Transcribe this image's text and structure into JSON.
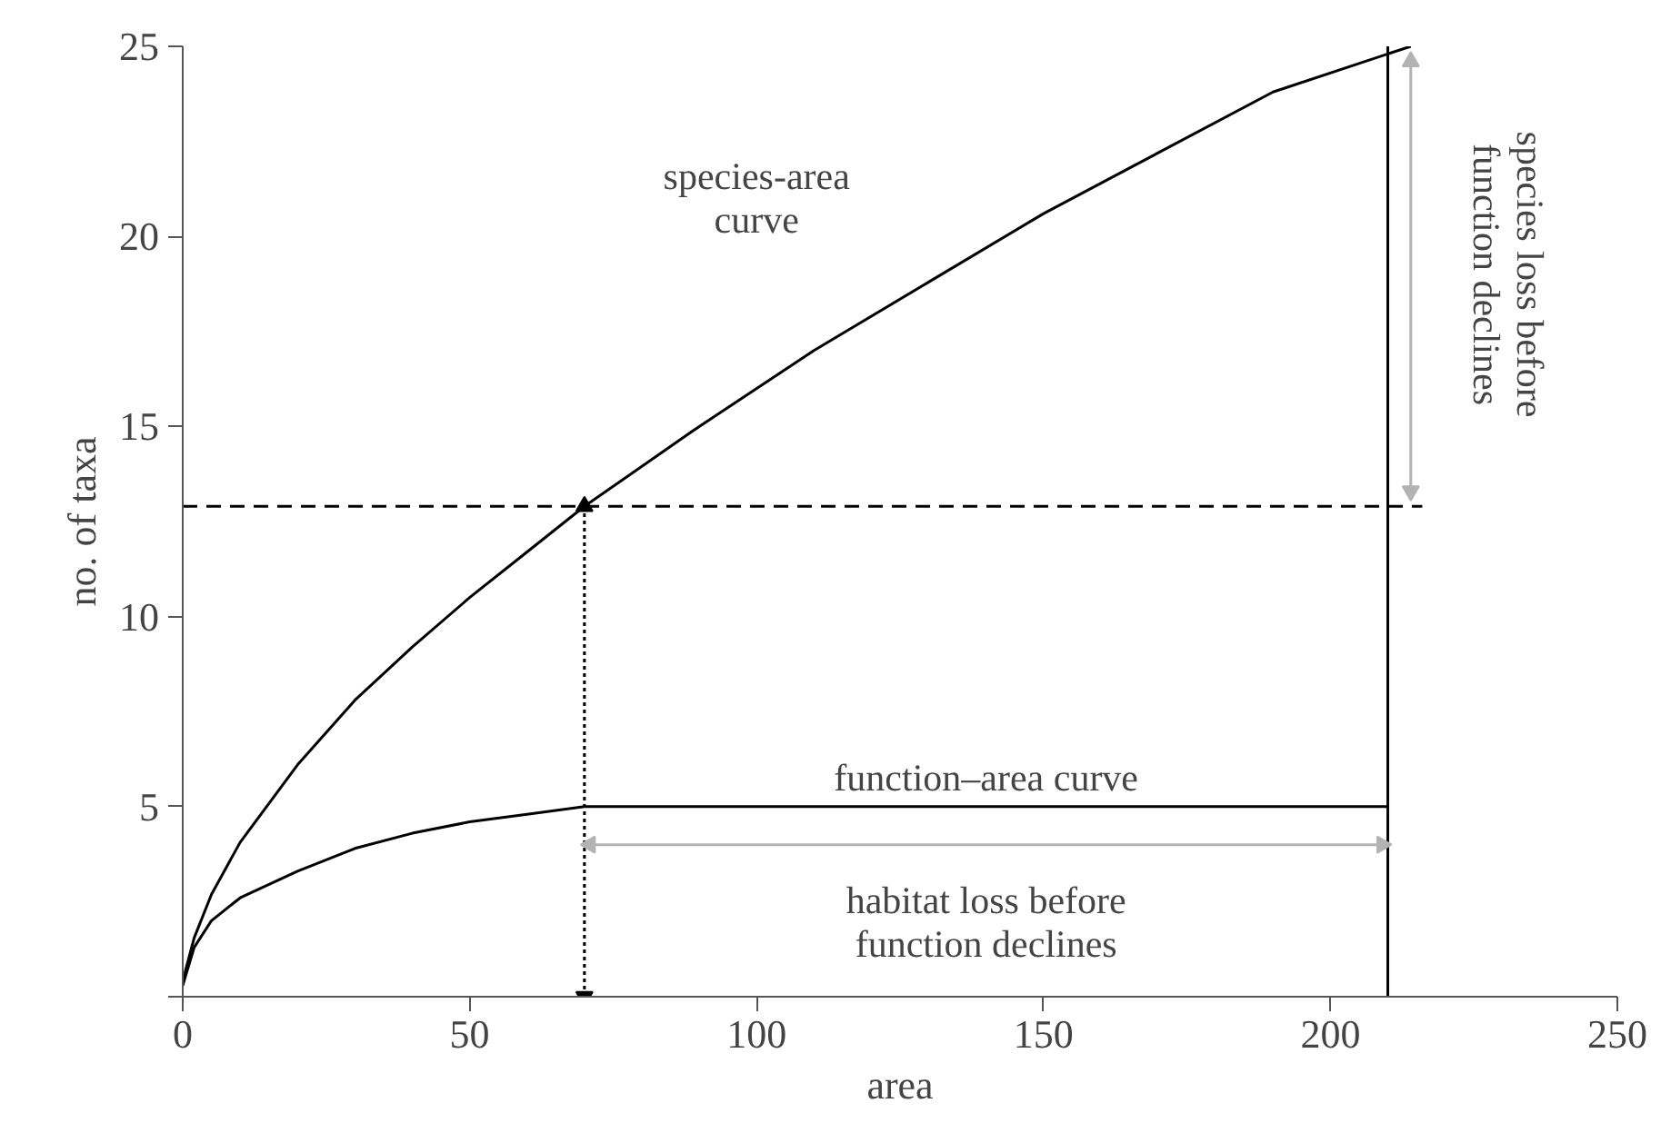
{
  "chart_data": {
    "type": "line",
    "xlabel": "area",
    "ylabel": "no. of taxa",
    "xlim": [
      0,
      250
    ],
    "ylim": [
      0,
      25
    ],
    "xticks": [
      0,
      50,
      100,
      150,
      200,
      250
    ],
    "yticks": [
      {
        "value": 0,
        "label": null
      },
      5,
      10,
      15,
      20,
      25
    ],
    "grid": false,
    "series": [
      {
        "color": "#000000",
        "line_style": "solid",
        "x": [
          0,
          0.5,
          2,
          5,
          10,
          20,
          30,
          40,
          50,
          60,
          70,
          90,
          110,
          130,
          150,
          170,
          190,
          214
        ],
        "values": [
          0.3,
          0.7,
          1.55,
          2.69,
          4.06,
          6.1,
          7.8,
          9.2,
          10.5,
          11.7,
          12.9,
          15.0,
          17.0,
          18.8,
          20.6,
          22.2,
          23.8,
          25
        ]
      },
      {
        "color": "#000000",
        "line_style": "solid",
        "x": [
          0,
          2,
          5,
          10,
          20,
          30,
          40,
          50,
          60,
          70,
          210
        ],
        "values": [
          0.3,
          1.3,
          2.0,
          2.6,
          3.3,
          3.9,
          4.3,
          4.6,
          4.8,
          5.0,
          5.0
        ]
      },
      {
        "color": "#000000",
        "line_style": "dashed",
        "x": [
          0,
          216
        ],
        "values": [
          12.9,
          12.9
        ]
      },
      {
        "color": "#000000",
        "line_style": "dotted",
        "marker": "triangle",
        "x": [
          70,
          70
        ],
        "values": [
          0,
          12.9
        ]
      },
      {
        "color": "#000000",
        "line_style": "solid",
        "x": [
          210,
          210
        ],
        "values": [
          25,
          0
        ]
      },
      {
        "color": "#b3b3b3",
        "line_style": "solid",
        "marker": "triangle",
        "x": [
          71,
          209
        ],
        "values": [
          4.0,
          4.0
        ]
      },
      {
        "color": "#b3b3b3",
        "line_style": "solid",
        "marker": "triangle",
        "x": [
          214,
          214
        ],
        "values": [
          13.3,
          24.6
        ]
      }
    ],
    "annotations": [
      "species-area\ncurve",
      "function–area curve",
      "habitat loss before\nfunction declines",
      "species loss before\nfunction declines"
    ]
  }
}
